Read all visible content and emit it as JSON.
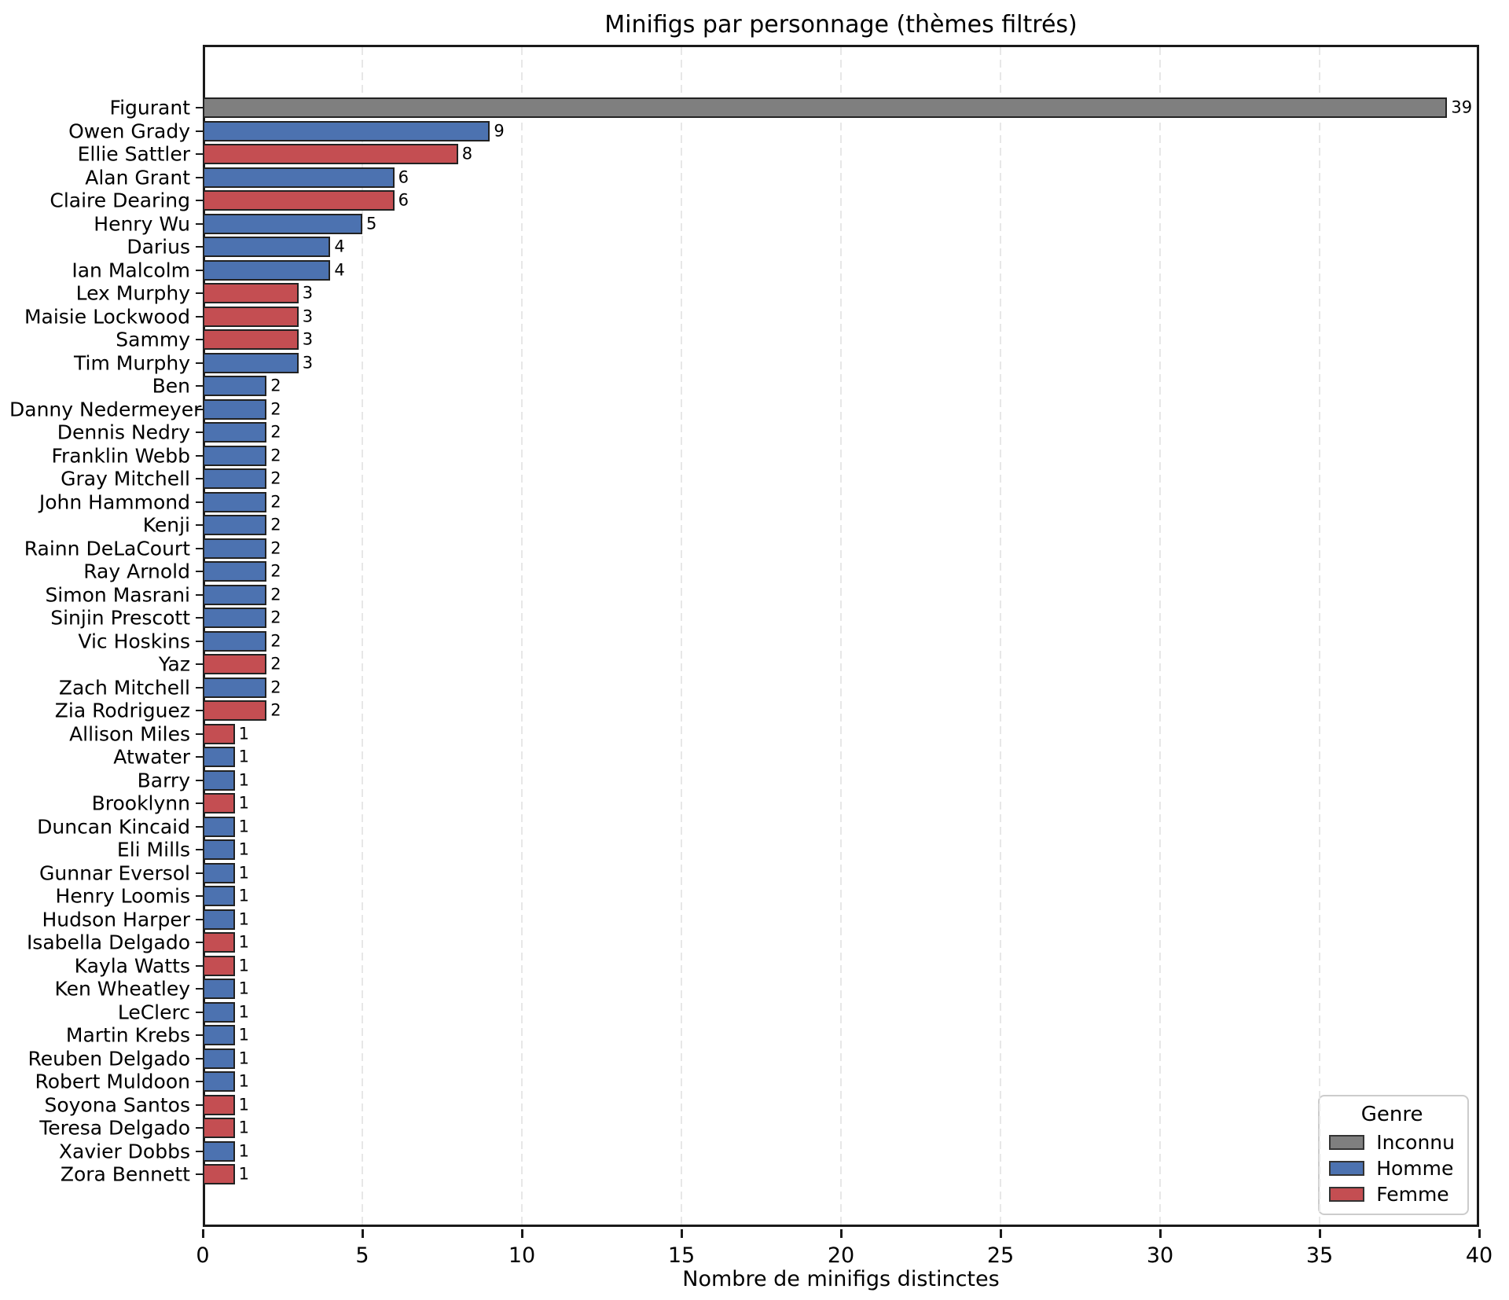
{
  "title": "Minifigs par personnage (thèmes filtrés)",
  "xlabel": "Nombre de minifigs distinctes",
  "legend": {
    "title": "Genre",
    "items": [
      {
        "label": "Inconnu",
        "color": "#7f7f7f"
      },
      {
        "label": "Homme",
        "color": "#4C72B0"
      },
      {
        "label": "Femme",
        "color": "#C44E52"
      }
    ]
  },
  "colors": {
    "inconnu": "#7f7f7f",
    "homme": "#4C72B0",
    "femme": "#C44E52",
    "bar_edge": "#222222",
    "spine": "#1a1a1a",
    "grid": "#e7e7e7"
  },
  "chart_data": {
    "type": "bar",
    "orientation": "horizontal",
    "title": "Minifigs par personnage (thèmes filtrés)",
    "xlabel": "Nombre de minifigs distinctes",
    "ylabel": "",
    "xlim": [
      0,
      40
    ],
    "xticks": [
      0,
      5,
      10,
      15,
      20,
      25,
      30,
      35,
      40
    ],
    "grid": "vertical-dashed",
    "legend_position": "lower-right",
    "legend_title": "Genre",
    "series_key": "Genre",
    "categories": [
      "Figurant",
      "Owen Grady",
      "Ellie Sattler",
      "Alan Grant",
      "Claire Dearing",
      "Henry Wu",
      "Darius",
      "Ian Malcolm",
      "Lex Murphy",
      "Maisie Lockwood",
      "Sammy",
      "Tim Murphy",
      "Ben",
      "Danny Nedermeyer",
      "Dennis Nedry",
      "Franklin Webb",
      "Gray Mitchell",
      "John Hammond",
      "Kenji",
      "Rainn DeLaCourt",
      "Ray Arnold",
      "Simon Masrani",
      "Sinjin Prescott",
      "Vic Hoskins",
      "Yaz",
      "Zach Mitchell",
      "Zia Rodriguez",
      "Allison Miles",
      "Atwater",
      "Barry",
      "Brooklynn",
      "Duncan Kincaid",
      "Eli Mills",
      "Gunnar Eversol",
      "Henry Loomis",
      "Hudson Harper",
      "Isabella Delgado",
      "Kayla Watts",
      "Ken Wheatley",
      "LeClerc",
      "Martin Krebs",
      "Reuben Delgado",
      "Robert Muldoon",
      "Soyona Santos",
      "Teresa Delgado",
      "Xavier Dobbs",
      "Zora Bennett"
    ],
    "values": [
      39,
      9,
      8,
      6,
      6,
      5,
      4,
      4,
      3,
      3,
      3,
      3,
      2,
      2,
      2,
      2,
      2,
      2,
      2,
      2,
      2,
      2,
      2,
      2,
      2,
      2,
      2,
      1,
      1,
      1,
      1,
      1,
      1,
      1,
      1,
      1,
      1,
      1,
      1,
      1,
      1,
      1,
      1,
      1,
      1,
      1,
      1
    ],
    "genres": [
      "Inconnu",
      "Homme",
      "Femme",
      "Homme",
      "Femme",
      "Homme",
      "Homme",
      "Homme",
      "Femme",
      "Femme",
      "Femme",
      "Homme",
      "Homme",
      "Homme",
      "Homme",
      "Homme",
      "Homme",
      "Homme",
      "Homme",
      "Homme",
      "Homme",
      "Homme",
      "Homme",
      "Homme",
      "Femme",
      "Homme",
      "Femme",
      "Femme",
      "Homme",
      "Homme",
      "Femme",
      "Homme",
      "Homme",
      "Homme",
      "Homme",
      "Homme",
      "Femme",
      "Femme",
      "Homme",
      "Homme",
      "Homme",
      "Homme",
      "Homme",
      "Femme",
      "Femme",
      "Homme",
      "Femme"
    ]
  }
}
